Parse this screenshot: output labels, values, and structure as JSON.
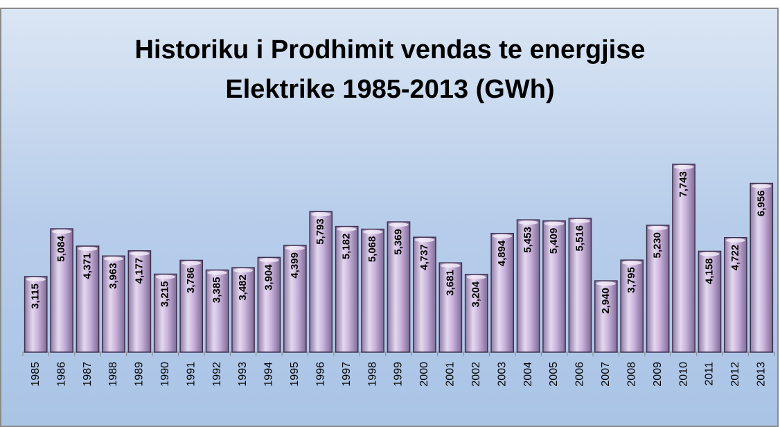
{
  "chart_data": {
    "type": "bar",
    "title": [
      "Historiku i Prodhimit vendas te energjise",
      "Elektrike 1985-2013 (GWh)"
    ],
    "categories": [
      "1985",
      "1986",
      "1987",
      "1988",
      "1989",
      "1990",
      "1991",
      "1992",
      "1993",
      "1994",
      "1995",
      "1996",
      "1997",
      "1998",
      "1999",
      "2000",
      "2001",
      "2002",
      "2003",
      "2004",
      "2005",
      "2006",
      "2007",
      "2008",
      "2009",
      "2010",
      "2011",
      "2012",
      "2013"
    ],
    "values": [
      3115,
      5084,
      4371,
      3963,
      4177,
      3215,
      3786,
      3385,
      3482,
      3904,
      4399,
      5793,
      5182,
      5068,
      5369,
      4737,
      3681,
      3204,
      4894,
      5453,
      5409,
      5516,
      2940,
      3795,
      5230,
      7743,
      4158,
      4722,
      6956
    ],
    "value_labels": [
      "3,115",
      "5,084",
      "4,371",
      "3,963",
      "4,177",
      "3,215",
      "3,786",
      "3,385",
      "3,482",
      "3,904",
      "4,399",
      "5,793",
      "5,182",
      "5,068",
      "5,369",
      "4,737",
      "3,681",
      "3,204",
      "4,894",
      "5,453",
      "5,409",
      "5,516",
      "2,940",
      "3,795",
      "5,230",
      "7,743",
      "4,158",
      "4,722",
      "6,956"
    ],
    "color": "#c9b3dc",
    "ylim": [
      0,
      8500
    ]
  }
}
